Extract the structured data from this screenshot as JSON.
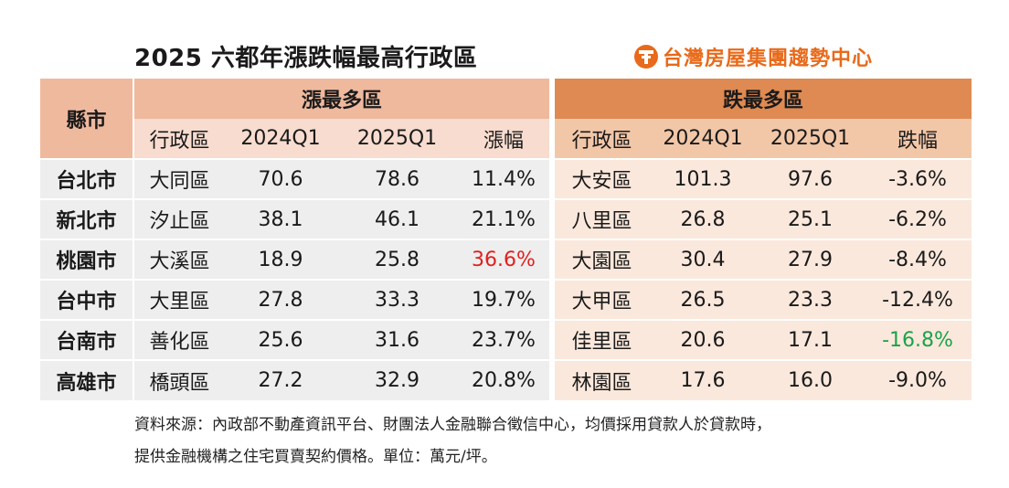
{
  "title": "2025 六都年漲跌幅最高行政區",
  "logo": {
    "text": "台灣房屋集團趨勢中心",
    "icon": "T-logo-icon",
    "color": "#e86a1a"
  },
  "table": {
    "county_header": "縣市",
    "rise_header": "漲最多區",
    "fall_header": "跌最多區",
    "rise_sub": [
      "行政區",
      "2024Q1",
      "2025Q1",
      "漲幅"
    ],
    "fall_sub": [
      "行政區",
      "2024Q1",
      "2025Q1",
      "跌幅"
    ],
    "rows": [
      {
        "county": "台北市",
        "rise": [
          "大同區",
          "70.6",
          "78.6",
          "11.4%"
        ],
        "fall": [
          "大安區",
          "101.3",
          "97.6",
          "-3.6%"
        ]
      },
      {
        "county": "新北市",
        "rise": [
          "汐止區",
          "38.1",
          "46.1",
          "21.1%"
        ],
        "fall": [
          "八里區",
          "26.8",
          "25.1",
          "-6.2%"
        ]
      },
      {
        "county": "桃園市",
        "rise": [
          "大溪區",
          "18.9",
          "25.8",
          "36.6%"
        ],
        "fall": [
          "大園區",
          "30.4",
          "27.9",
          "-8.4%"
        ]
      },
      {
        "county": "台中市",
        "rise": [
          "大里區",
          "27.8",
          "33.3",
          "19.7%"
        ],
        "fall": [
          "大甲區",
          "26.5",
          "23.3",
          "-12.4%"
        ]
      },
      {
        "county": "台南市",
        "rise": [
          "善化區",
          "25.6",
          "31.6",
          "23.7%"
        ],
        "fall": [
          "佳里區",
          "20.6",
          "17.1",
          "-16.8%"
        ]
      },
      {
        "county": "高雄市",
        "rise": [
          "橋頭區",
          "27.2",
          "32.9",
          "20.8%"
        ],
        "fall": [
          "林園區",
          "17.6",
          "16.0",
          "-9.0%"
        ]
      }
    ],
    "highlight": {
      "max_rise_color": "#e02020",
      "max_fall_color": "#1aa34a"
    }
  },
  "note": {
    "line1": "資料來源：內政部不動產資訊平台、財團法人金融聯合徵信中心，均價採用貸款人於貸款時，",
    "line2": "提供金融機構之住宅買賣契約價格。單位：萬元/坪。"
  }
}
